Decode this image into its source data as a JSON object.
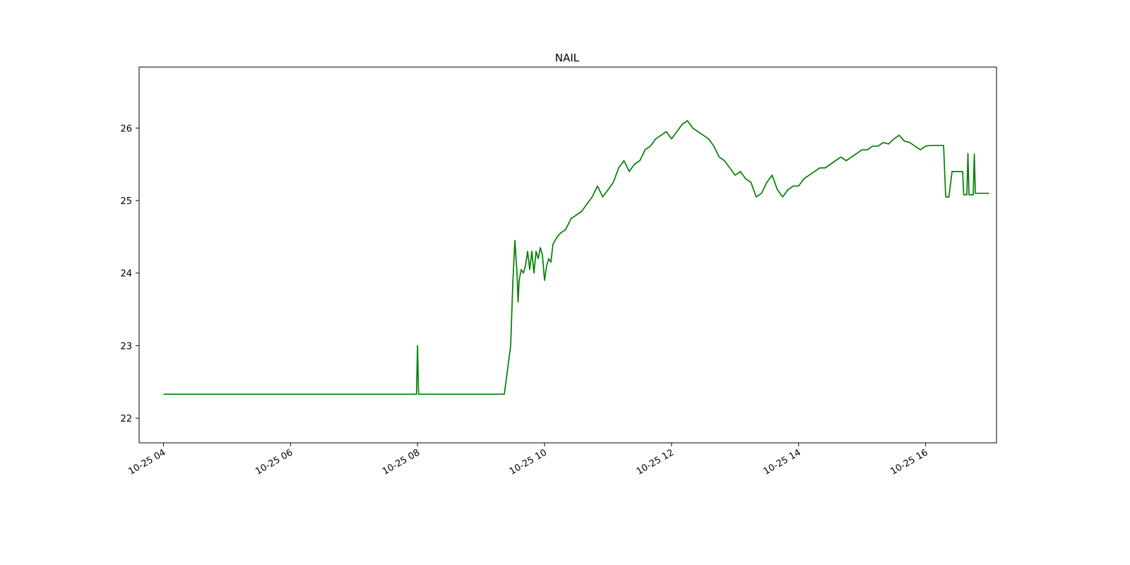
{
  "chart_data": {
    "type": "line",
    "title": "NAIL",
    "xlabel": "",
    "ylabel": "",
    "grid": false,
    "line_color": "#008000",
    "xlim": [
      "10-25 03:37",
      "10-25 17:07"
    ],
    "ylim": [
      21.66,
      26.84
    ],
    "x_ticks": [
      "10-25 04",
      "10-25 06",
      "10-25 08",
      "10-25 10",
      "10-25 12",
      "10-25 14",
      "10-25 16"
    ],
    "y_ticks": [
      "22",
      "23",
      "24",
      "25",
      "26"
    ],
    "series": [
      {
        "x": [
          "10-25 04:00",
          "10-25 07:59",
          "10-25 08:00",
          "10-25 08:01",
          "10-25 09:22",
          "10-25 09:28",
          "10-25 09:30",
          "10-25 09:32",
          "10-25 09:34",
          "10-25 09:35",
          "10-25 09:36",
          "10-25 09:38",
          "10-25 09:40",
          "10-25 09:42",
          "10-25 09:44",
          "10-25 09:46",
          "10-25 09:48",
          "10-25 09:50",
          "10-25 09:52",
          "10-25 09:54",
          "10-25 09:56",
          "10-25 09:58",
          "10-25 10:00",
          "10-25 10:02",
          "10-25 10:04",
          "10-25 10:06",
          "10-25 10:08",
          "10-25 10:10",
          "10-25 10:12",
          "10-25 10:15",
          "10-25 10:20",
          "10-25 10:25",
          "10-25 10:30",
          "10-25 10:35",
          "10-25 10:40",
          "10-25 10:45",
          "10-25 10:50",
          "10-25 10:55",
          "10-25 11:00",
          "10-25 11:05",
          "10-25 11:10",
          "10-25 11:15",
          "10-25 11:20",
          "10-25 11:25",
          "10-25 11:30",
          "10-25 11:35",
          "10-25 11:40",
          "10-25 11:45",
          "10-25 11:50",
          "10-25 11:55",
          "10-25 12:00",
          "10-25 12:05",
          "10-25 12:10",
          "10-25 12:15",
          "10-25 12:20",
          "10-25 12:25",
          "10-25 12:30",
          "10-25 12:35",
          "10-25 12:40",
          "10-25 12:45",
          "10-25 12:50",
          "10-25 12:55",
          "10-25 13:00",
          "10-25 13:05",
          "10-25 13:10",
          "10-25 13:15",
          "10-25 13:20",
          "10-25 13:25",
          "10-25 13:30",
          "10-25 13:35",
          "10-25 13:40",
          "10-25 13:45",
          "10-25 13:50",
          "10-25 13:55",
          "10-25 14:00",
          "10-25 14:05",
          "10-25 14:10",
          "10-25 14:15",
          "10-25 14:20",
          "10-25 14:25",
          "10-25 14:30",
          "10-25 14:35",
          "10-25 14:40",
          "10-25 14:45",
          "10-25 14:50",
          "10-25 14:55",
          "10-25 15:00",
          "10-25 15:05",
          "10-25 15:10",
          "10-25 15:15",
          "10-25 15:20",
          "10-25 15:25",
          "10-25 15:30",
          "10-25 15:35",
          "10-25 15:40",
          "10-25 15:45",
          "10-25 15:50",
          "10-25 15:55",
          "10-25 16:00",
          "10-25 16:05",
          "10-25 16:10",
          "10-25 16:17",
          "10-25 16:19",
          "10-25 16:22",
          "10-25 16:25",
          "10-25 16:35",
          "10-25 16:36",
          "10-25 16:39",
          "10-25 16:40",
          "10-25 16:41",
          "10-25 16:45",
          "10-25 16:46",
          "10-25 16:47",
          "10-25 17:00"
        ],
        "y": [
          22.33,
          22.33,
          23.0,
          22.33,
          22.33,
          23.0,
          23.85,
          24.45,
          24.0,
          23.6,
          23.9,
          24.05,
          24.0,
          24.1,
          24.3,
          24.05,
          24.3,
          24.0,
          24.3,
          24.2,
          24.35,
          24.25,
          23.9,
          24.1,
          24.2,
          24.15,
          24.4,
          24.45,
          24.5,
          24.55,
          24.6,
          24.75,
          24.8,
          24.85,
          24.95,
          25.05,
          25.2,
          25.05,
          25.15,
          25.25,
          25.45,
          25.55,
          25.4,
          25.5,
          25.55,
          25.7,
          25.75,
          25.85,
          25.9,
          25.95,
          25.85,
          25.95,
          26.05,
          26.1,
          26.0,
          25.95,
          25.9,
          25.85,
          25.75,
          25.6,
          25.55,
          25.45,
          25.35,
          25.4,
          25.3,
          25.25,
          25.05,
          25.1,
          25.25,
          25.35,
          25.15,
          25.05,
          25.15,
          25.2,
          25.2,
          25.3,
          25.35,
          25.4,
          25.45,
          25.45,
          25.5,
          25.55,
          25.6,
          25.55,
          25.6,
          25.65,
          25.7,
          25.7,
          25.75,
          25.75,
          25.8,
          25.78,
          25.85,
          25.9,
          25.82,
          25.8,
          25.75,
          25.7,
          25.75,
          25.76,
          25.76,
          25.76,
          25.05,
          25.05,
          25.4,
          25.4,
          25.08,
          25.08,
          25.65,
          25.08,
          25.08,
          25.64,
          25.1,
          25.1
        ]
      }
    ]
  }
}
